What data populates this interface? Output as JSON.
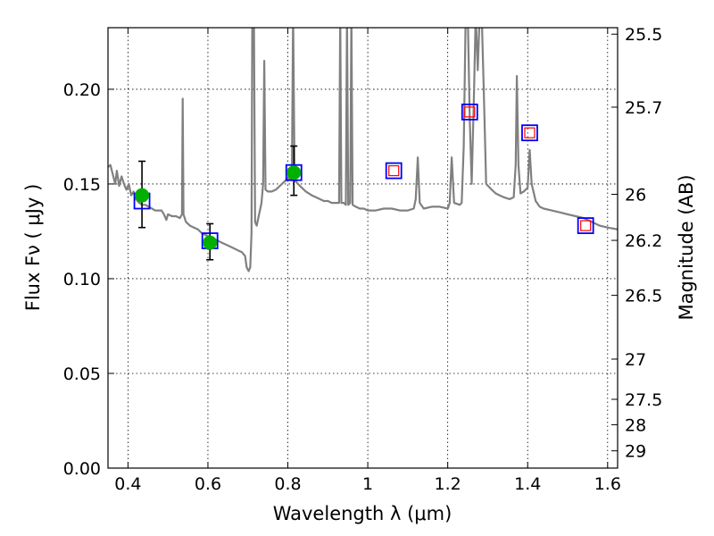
{
  "chart_data": {
    "type": "scatter",
    "xlabel": "Wavelength  λ (μm)",
    "ylabel": "Flux  Fν  ( μJy )",
    "ylabel_right": "Magnitude (AB)",
    "xlim": [
      0.35,
      1.625
    ],
    "ylim": [
      0.0,
      0.2325
    ],
    "x_ticks": [
      0.4,
      0.6,
      0.8,
      1.0,
      1.2,
      1.4,
      1.6
    ],
    "x_tick_labels": [
      "0.4",
      "0.6",
      "0.8",
      "1",
      "1.2",
      "1.4",
      "1.6"
    ],
    "y_ticks": [
      0.0,
      0.05,
      0.1,
      0.15,
      0.2
    ],
    "y_tick_labels": [
      "0.00",
      "0.05",
      "0.10",
      "0.15",
      "0.20"
    ],
    "right_ticks": [
      {
        "label": "25.5",
        "value": 25.5
      },
      {
        "label": "25.7",
        "value": 25.7
      },
      {
        "label": "26",
        "value": 26.0
      },
      {
        "label": "26.2",
        "value": 26.2
      },
      {
        "label": "26.5",
        "value": 26.5
      },
      {
        "label": "27",
        "value": 27.0
      },
      {
        "label": "27.5",
        "value": 27.5
      },
      {
        "label": "28",
        "value": 28.0
      },
      {
        "label": "29",
        "value": 29.0
      }
    ],
    "grid": true,
    "colors": {
      "spectrum": "#808080",
      "observed": "#00b000",
      "model_box": "#0000ff",
      "model_inner": "#ff0000"
    },
    "spectrum": [
      [
        0.35,
        0.159
      ],
      [
        0.356,
        0.16
      ],
      [
        0.362,
        0.155
      ],
      [
        0.368,
        0.15
      ],
      [
        0.372,
        0.157
      ],
      [
        0.378,
        0.149
      ],
      [
        0.384,
        0.154
      ],
      [
        0.39,
        0.15
      ],
      [
        0.396,
        0.147
      ],
      [
        0.402,
        0.15
      ],
      [
        0.408,
        0.144
      ],
      [
        0.414,
        0.146
      ],
      [
        0.42,
        0.142
      ],
      [
        0.428,
        0.14
      ],
      [
        0.436,
        0.139
      ],
      [
        0.444,
        0.139
      ],
      [
        0.452,
        0.138
      ],
      [
        0.46,
        0.137
      ],
      [
        0.468,
        0.136
      ],
      [
        0.476,
        0.136
      ],
      [
        0.484,
        0.136
      ],
      [
        0.49,
        0.134
      ],
      [
        0.496,
        0.131
      ],
      [
        0.5,
        0.134
      ],
      [
        0.51,
        0.133
      ],
      [
        0.52,
        0.133
      ],
      [
        0.53,
        0.132
      ],
      [
        0.535,
        0.134
      ],
      [
        0.537,
        0.195
      ],
      [
        0.539,
        0.134
      ],
      [
        0.545,
        0.13
      ],
      [
        0.555,
        0.128
      ],
      [
        0.565,
        0.127
      ],
      [
        0.575,
        0.126
      ],
      [
        0.585,
        0.124
      ],
      [
        0.595,
        0.123
      ],
      [
        0.605,
        0.122
      ],
      [
        0.615,
        0.121
      ],
      [
        0.625,
        0.12
      ],
      [
        0.635,
        0.119
      ],
      [
        0.645,
        0.118
      ],
      [
        0.655,
        0.117
      ],
      [
        0.665,
        0.116
      ],
      [
        0.675,
        0.115
      ],
      [
        0.685,
        0.114
      ],
      [
        0.693,
        0.112
      ],
      [
        0.697,
        0.106
      ],
      [
        0.702,
        0.104
      ],
      [
        0.706,
        0.106
      ],
      [
        0.709,
        0.124
      ],
      [
        0.711,
        0.24
      ],
      [
        0.715,
        0.24
      ],
      [
        0.718,
        0.13
      ],
      [
        0.722,
        0.128
      ],
      [
        0.728,
        0.134
      ],
      [
        0.734,
        0.14
      ],
      [
        0.738,
        0.15
      ],
      [
        0.741,
        0.215
      ],
      [
        0.744,
        0.147
      ],
      [
        0.75,
        0.146
      ],
      [
        0.76,
        0.146
      ],
      [
        0.77,
        0.147
      ],
      [
        0.78,
        0.149
      ],
      [
        0.79,
        0.151
      ],
      [
        0.8,
        0.153
      ],
      [
        0.81,
        0.152
      ],
      [
        0.813,
        0.24
      ],
      [
        0.817,
        0.152
      ],
      [
        0.83,
        0.149
      ],
      [
        0.845,
        0.146
      ],
      [
        0.86,
        0.144
      ],
      [
        0.87,
        0.143
      ],
      [
        0.88,
        0.142
      ],
      [
        0.89,
        0.141
      ],
      [
        0.9,
        0.141
      ],
      [
        0.91,
        0.14
      ],
      [
        0.92,
        0.14
      ],
      [
        0.928,
        0.14
      ],
      [
        0.931,
        0.24
      ],
      [
        0.934,
        0.14
      ],
      [
        0.94,
        0.14
      ],
      [
        0.945,
        0.139
      ],
      [
        0.948,
        0.24
      ],
      [
        0.951,
        0.139
      ],
      [
        0.956,
        0.14
      ],
      [
        0.959,
        0.24
      ],
      [
        0.962,
        0.139
      ],
      [
        0.97,
        0.138
      ],
      [
        0.98,
        0.137
      ],
      [
        0.99,
        0.137
      ],
      [
        1.0,
        0.136
      ],
      [
        1.02,
        0.136
      ],
      [
        1.04,
        0.137
      ],
      [
        1.06,
        0.137
      ],
      [
        1.08,
        0.136
      ],
      [
        1.1,
        0.136
      ],
      [
        1.115,
        0.137
      ],
      [
        1.12,
        0.142
      ],
      [
        1.125,
        0.164
      ],
      [
        1.13,
        0.14
      ],
      [
        1.14,
        0.137
      ],
      [
        1.16,
        0.138
      ],
      [
        1.18,
        0.138
      ],
      [
        1.2,
        0.137
      ],
      [
        1.205,
        0.14
      ],
      [
        1.21,
        0.164
      ],
      [
        1.216,
        0.14
      ],
      [
        1.23,
        0.139
      ],
      [
        1.235,
        0.14
      ],
      [
        1.24,
        0.17
      ],
      [
        1.245,
        0.24
      ],
      [
        1.25,
        0.24
      ],
      [
        1.255,
        0.185
      ],
      [
        1.26,
        0.15
      ],
      [
        1.266,
        0.2
      ],
      [
        1.27,
        0.24
      ],
      [
        1.275,
        0.21
      ],
      [
        1.28,
        0.24
      ],
      [
        1.285,
        0.24
      ],
      [
        1.29,
        0.2
      ],
      [
        1.296,
        0.15
      ],
      [
        1.31,
        0.147
      ],
      [
        1.32,
        0.145
      ],
      [
        1.33,
        0.144
      ],
      [
        1.34,
        0.143
      ],
      [
        1.355,
        0.142
      ],
      [
        1.365,
        0.143
      ],
      [
        1.37,
        0.16
      ],
      [
        1.373,
        0.207
      ],
      [
        1.377,
        0.16
      ],
      [
        1.382,
        0.145
      ],
      [
        1.39,
        0.146
      ],
      [
        1.4,
        0.148
      ],
      [
        1.405,
        0.168
      ],
      [
        1.41,
        0.15
      ],
      [
        1.42,
        0.141
      ],
      [
        1.43,
        0.138
      ],
      [
        1.44,
        0.137
      ],
      [
        1.46,
        0.136
      ],
      [
        1.48,
        0.135
      ],
      [
        1.5,
        0.134
      ],
      [
        1.52,
        0.133
      ],
      [
        1.54,
        0.132
      ],
      [
        1.56,
        0.13
      ],
      [
        1.58,
        0.128
      ],
      [
        1.6,
        0.127
      ],
      [
        1.625,
        0.126
      ]
    ],
    "observed": [
      {
        "x": 0.435,
        "y": 0.144,
        "err_low": 0.127,
        "err_high": 0.162
      },
      {
        "x": 0.605,
        "y": 0.119,
        "err_low": 0.11,
        "err_high": 0.129
      },
      {
        "x": 0.815,
        "y": 0.156,
        "err_low": 0.144,
        "err_high": 0.17
      }
    ],
    "model_photometry": [
      {
        "x": 0.435,
        "y": 0.141,
        "inner": false
      },
      {
        "x": 0.605,
        "y": 0.12,
        "inner": false
      },
      {
        "x": 0.815,
        "y": 0.156,
        "inner": false
      },
      {
        "x": 1.065,
        "y": 0.157,
        "inner": true
      },
      {
        "x": 1.255,
        "y": 0.188,
        "inner": true
      },
      {
        "x": 1.405,
        "y": 0.177,
        "inner": true
      },
      {
        "x": 1.545,
        "y": 0.128,
        "inner": true
      }
    ]
  }
}
